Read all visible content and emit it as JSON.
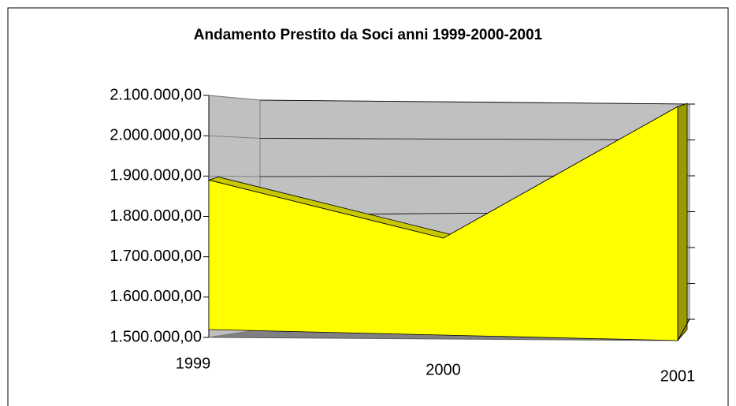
{
  "chart_data": {
    "type": "area",
    "title": "Andamento Prestito da Soci anni 1999-2000-2001",
    "categories": [
      "1999",
      "2000",
      "2001"
    ],
    "values": [
      1890000,
      1750000,
      2080000
    ],
    "color": "#ffff00",
    "ylim": [
      1500000,
      2100000
    ],
    "yticks": [
      {
        "value": 1500000,
        "label": "1.500.000,00"
      },
      {
        "value": 1600000,
        "label": "1.600.000,00"
      },
      {
        "value": 1700000,
        "label": "1.700.000,00"
      },
      {
        "value": 1800000,
        "label": "1.800.000,00"
      },
      {
        "value": 1900000,
        "label": "1.900.000,00"
      },
      {
        "value": 2000000,
        "label": "2.000.000,00"
      },
      {
        "value": 2100000,
        "label": "2.100.000,00"
      }
    ],
    "grid": true
  }
}
